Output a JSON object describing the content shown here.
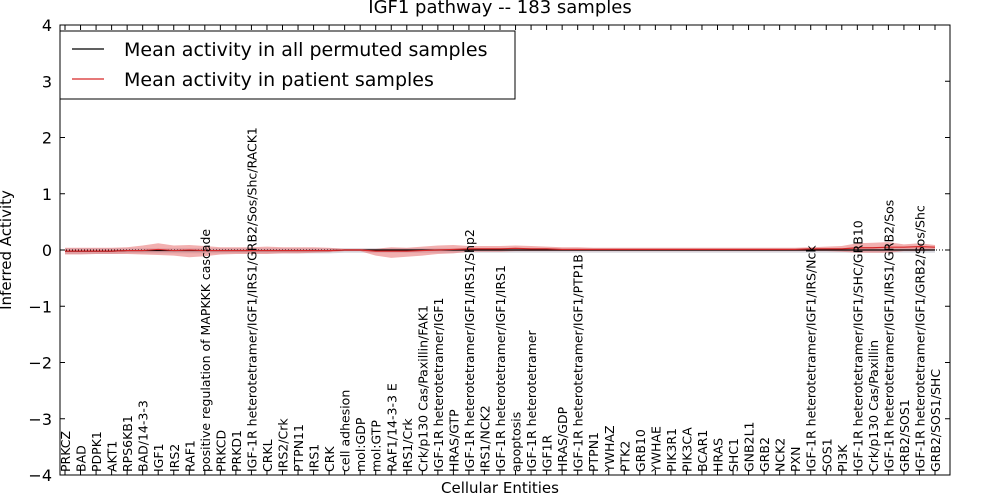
{
  "chart_data": {
    "type": "line",
    "title": "IGF1 pathway -- 183 samples",
    "xlabel": "Cellular Entities",
    "ylabel": "Inferred Activity",
    "ylim": [
      -4,
      4
    ],
    "yticks": [
      4,
      3,
      2,
      1,
      0,
      -1,
      -2,
      -3,
      -4
    ],
    "ytick_labels": [
      "4",
      "3",
      "2",
      "1",
      "0",
      "−1",
      "−2",
      "−3",
      "−4"
    ],
    "legend_position": "upper-left",
    "grid": false,
    "categories": [
      "PRKCZ",
      "BAD",
      "PDPK1",
      "AKT1",
      "RPS6KB1",
      "BAD/14-3-3",
      "IGF1",
      "IRS2",
      "RAF1",
      "positive regulation of MAPKKK cascade",
      "PRKCD",
      "PRKD1",
      "IGF-1R heterotetramer/IGF1/IRS1/GRB2/Sos/Shc/RACK1",
      "CRKL",
      "IRS2/Crk",
      "PTPN11",
      "IRS1",
      "CRK",
      "cell adhesion",
      "mol:GDP",
      "mol:GTP",
      "RAF1/14-3-3 E",
      "IRS1/Crk",
      "Crk/p130 Cas/Paxillin/FAK1",
      "IGF-1R heterotetramer/IGF1",
      "HRAS/GTP",
      "IGF-1R heterotetramer/IGF1/IRS1/Shp2",
      "IRS1/NCK2",
      "IGF-1R heterotetramer/IGF1/IRS1",
      "apoptosis",
      "IGF-1R heterotetramer",
      "IGF1R",
      "HRAS/GDP",
      "IGF-1R heterotetramer/IGF1/PTP1B",
      "PTPN1",
      "YWHAZ",
      "PTK2",
      "GRB10",
      "YWHAE",
      "PIK3R1",
      "PIK3CA",
      "BCAR1",
      "HRAS",
      "SHC1",
      "GNB2L1",
      "GRB2",
      "NCK2",
      "PXN",
      "IGF-1R heterotetramer/IGF1/IRS/Nck",
      "SOS1",
      "PI3K",
      "IGF-1R heterotetramer/IGF1/SHC/GRB10",
      "Crk/p130 Cas/Paxillin",
      "IGF-1R heterotetramer/IGF1/IRS1/GRB2/Sos",
      "GRB2/SOS1",
      "IGF-1R heterotetramer/IGF1/GRB2/Sos/Shc",
      "GRB2/SOS1/SHC"
    ],
    "series": [
      {
        "name": "Mean activity in all permuted samples",
        "color": "#000000",
        "values": [
          -0.02,
          -0.02,
          -0.02,
          -0.02,
          -0.01,
          -0.01,
          -0.01,
          -0.01,
          -0.01,
          -0.01,
          -0.01,
          -0.01,
          -0.01,
          -0.01,
          -0.01,
          -0.01,
          -0.01,
          -0.01,
          0.0,
          0.0,
          0.0,
          0.0,
          0.0,
          0.0,
          0.0,
          0.0,
          0.0,
          0.0,
          0.0,
          0.0,
          0.0,
          0.0,
          0.0,
          0.0,
          0.0,
          0.0,
          0.0,
          0.0,
          0.0,
          0.0,
          0.0,
          0.0,
          0.0,
          0.0,
          0.0,
          0.0,
          0.0,
          0.0,
          0.0,
          0.0,
          0.0,
          0.0,
          0.0,
          0.0,
          0.0,
          0.0,
          0.0
        ],
        "band_upper": [
          0.03,
          0.03,
          0.03,
          0.03,
          0.03,
          0.03,
          0.03,
          0.03,
          0.03,
          0.03,
          0.03,
          0.03,
          0.03,
          0.03,
          0.03,
          0.03,
          0.03,
          0.03,
          0.03,
          0.03,
          0.03,
          0.03,
          0.03,
          0.03,
          0.03,
          0.03,
          0.03,
          0.03,
          0.03,
          0.03,
          0.03,
          0.03,
          0.03,
          0.03,
          0.03,
          0.03,
          0.03,
          0.03,
          0.03,
          0.03,
          0.03,
          0.03,
          0.03,
          0.03,
          0.03,
          0.03,
          0.03,
          0.03,
          0.03,
          0.03,
          0.03,
          0.03,
          0.03,
          0.03,
          0.03,
          0.03,
          0.03
        ],
        "band_lower": [
          -0.07,
          -0.07,
          -0.07,
          -0.07,
          -0.06,
          -0.06,
          -0.06,
          -0.06,
          -0.06,
          -0.06,
          -0.06,
          -0.06,
          -0.06,
          -0.06,
          -0.06,
          -0.06,
          -0.06,
          -0.06,
          -0.05,
          -0.05,
          -0.05,
          -0.05,
          -0.05,
          -0.05,
          -0.05,
          -0.05,
          -0.05,
          -0.05,
          -0.05,
          -0.05,
          -0.05,
          -0.05,
          -0.05,
          -0.05,
          -0.05,
          -0.05,
          -0.05,
          -0.05,
          -0.05,
          -0.05,
          -0.05,
          -0.05,
          -0.05,
          -0.05,
          -0.05,
          -0.05,
          -0.05,
          -0.05,
          -0.05,
          -0.05,
          -0.05,
          -0.05,
          -0.05,
          -0.05,
          -0.05,
          -0.05,
          -0.05
        ]
      },
      {
        "name": "Mean activity in patient samples",
        "color": "#d62728",
        "values": [
          -0.02,
          -0.02,
          -0.02,
          -0.02,
          -0.01,
          -0.01,
          0.01,
          -0.01,
          0.0,
          -0.01,
          -0.01,
          -0.01,
          -0.01,
          -0.01,
          -0.01,
          -0.01,
          -0.01,
          -0.01,
          0.0,
          0.0,
          -0.02,
          -0.02,
          -0.02,
          -0.01,
          0.0,
          0.01,
          0.02,
          0.02,
          0.02,
          0.03,
          0.02,
          0.02,
          0.01,
          0.01,
          0.01,
          0.01,
          0.01,
          0.01,
          0.01,
          0.01,
          0.01,
          0.01,
          0.01,
          0.01,
          0.01,
          0.01,
          0.01,
          0.01,
          0.02,
          0.02,
          0.02,
          0.04,
          0.04,
          0.05,
          0.05,
          0.06,
          0.05
        ],
        "band_upper": [
          0.04,
          0.04,
          0.04,
          0.04,
          0.05,
          0.08,
          0.12,
          0.08,
          0.09,
          0.07,
          0.05,
          0.05,
          0.05,
          0.06,
          0.05,
          0.05,
          0.05,
          0.04,
          0.02,
          0.02,
          0.02,
          0.05,
          0.04,
          0.06,
          0.08,
          0.09,
          0.07,
          0.07,
          0.07,
          0.08,
          0.07,
          0.06,
          0.05,
          0.05,
          0.04,
          0.04,
          0.04,
          0.04,
          0.04,
          0.04,
          0.04,
          0.04,
          0.04,
          0.04,
          0.04,
          0.04,
          0.04,
          0.04,
          0.05,
          0.06,
          0.07,
          0.12,
          0.13,
          0.14,
          0.1,
          0.12,
          0.09
        ],
        "band_lower": [
          -0.08,
          -0.08,
          -0.07,
          -0.07,
          -0.07,
          -0.08,
          -0.09,
          -0.1,
          -0.13,
          -0.11,
          -0.08,
          -0.07,
          -0.07,
          -0.07,
          -0.06,
          -0.06,
          -0.05,
          -0.04,
          -0.02,
          -0.02,
          -0.1,
          -0.14,
          -0.12,
          -0.1,
          -0.07,
          -0.06,
          -0.03,
          -0.03,
          -0.03,
          -0.02,
          -0.02,
          -0.02,
          -0.02,
          -0.02,
          -0.02,
          -0.02,
          -0.02,
          -0.02,
          -0.02,
          -0.02,
          -0.02,
          -0.02,
          -0.02,
          -0.02,
          -0.02,
          -0.02,
          -0.02,
          -0.02,
          -0.02,
          -0.02,
          -0.03,
          -0.05,
          -0.05,
          -0.05,
          -0.02,
          -0.02,
          -0.01
        ]
      }
    ]
  }
}
